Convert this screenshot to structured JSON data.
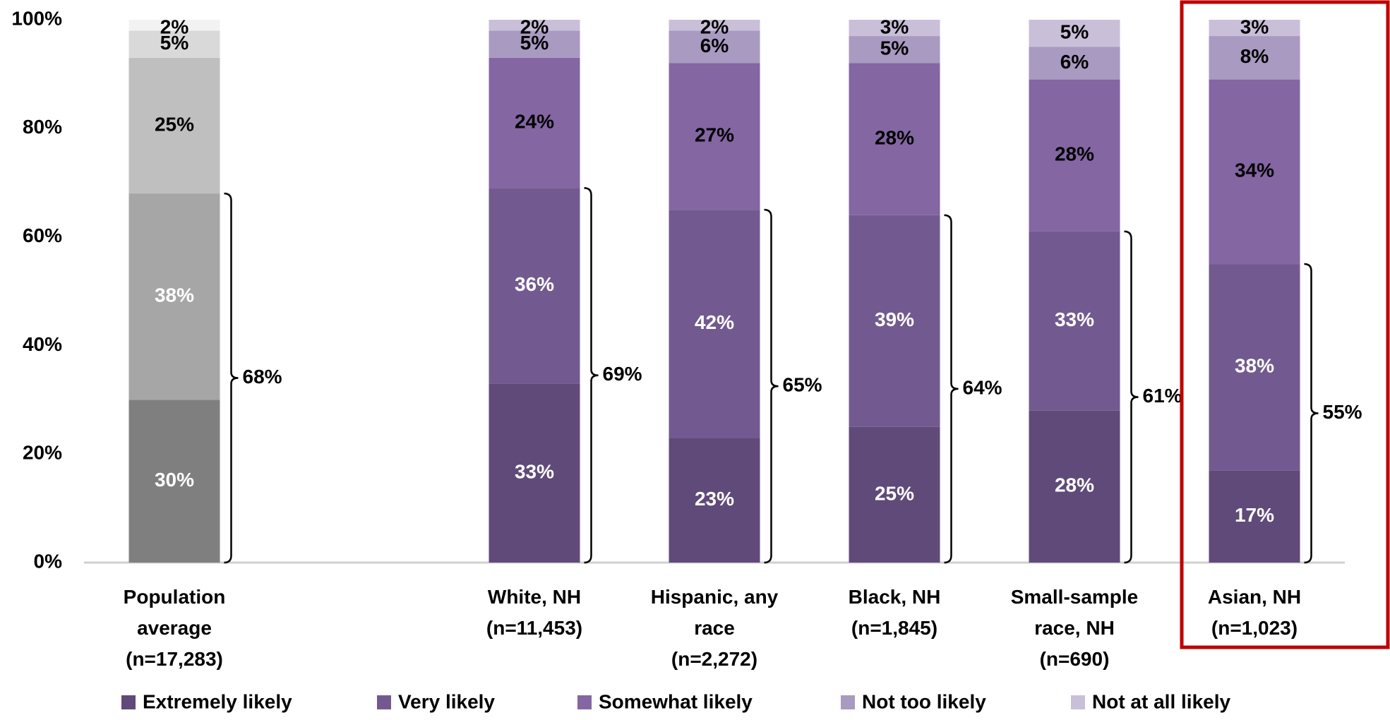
{
  "chart_data": {
    "type": "stacked_bar",
    "categories": [
      "Population average (n=17,283)",
      null,
      "White, NH (n=11,453)",
      "Hispanic, any race (n=2,272)",
      "Black, NH (n=1,845)",
      "Small-sample race, NH (n=690)",
      "Asian, NH (n=1,023)"
    ],
    "series": [
      {
        "name": "Extremely likely",
        "color": "#5f4a7a",
        "colors": [
          "#7f7f7f",
          null,
          "#5f4a7a",
          "#5f4a7a",
          "#5f4a7a",
          "#5f4a7a",
          "#5f4a7a"
        ],
        "values": [
          30,
          null,
          33,
          23,
          25,
          28,
          17
        ],
        "value_labels": [
          "30%",
          null,
          "33%",
          "23%",
          "25%",
          "28%",
          "17%"
        ]
      },
      {
        "name": "Very likely",
        "color": "#725a90",
        "colors": [
          "#a6a6a6",
          null,
          "#725a90",
          "#725a90",
          "#725a90",
          "#725a90",
          "#725a90"
        ],
        "values": [
          38,
          null,
          36,
          42,
          39,
          33,
          38
        ],
        "value_labels": [
          "38%",
          null,
          "36%",
          "42%",
          "39%",
          "33%",
          "38%"
        ]
      },
      {
        "name": "Somewhat likely",
        "color": "#8466a3",
        "colors": [
          "#bfbfbf",
          null,
          "#8466a3",
          "#8466a3",
          "#8466a3",
          "#8466a3",
          "#8466a3"
        ],
        "values": [
          25,
          null,
          24,
          27,
          28,
          28,
          34
        ],
        "value_labels": [
          "25%",
          null,
          "24%",
          "27%",
          "28%",
          "28%",
          "34%"
        ]
      },
      {
        "name": "Not too likely",
        "color": "#a89ac0",
        "colors": [
          "#d9d9d9",
          null,
          "#a89ac0",
          "#a89ac0",
          "#a89ac0",
          "#a89ac0",
          "#a89ac0"
        ],
        "values": [
          5,
          null,
          5,
          6,
          5,
          6,
          8
        ],
        "value_labels": [
          "5%",
          null,
          "5%",
          "6%",
          "5%",
          "6%",
          "8%"
        ]
      },
      {
        "name": "Not at all likely",
        "color": "#c9bfd9",
        "colors": [
          "#f2f2f2",
          null,
          "#c9bfd9",
          "#c9bfd9",
          "#c9bfd9",
          "#c9bfd9",
          "#c9bfd9"
        ],
        "values": [
          2,
          null,
          2,
          2,
          3,
          5,
          3
        ],
        "value_labels": [
          "2%",
          null,
          "2%",
          "2%",
          "3%",
          "5%",
          "3%"
        ]
      }
    ],
    "bracket_values": [
      68,
      null,
      69,
      65,
      64,
      61,
      55
    ],
    "bracket_labels": [
      "68%",
      null,
      "69%",
      "65%",
      "64%",
      "61%",
      "55%"
    ],
    "ylim": [
      0,
      100
    ],
    "yticks": [
      {
        "value": 0,
        "label": "0%"
      },
      {
        "value": 20,
        "label": "20%"
      },
      {
        "value": 40,
        "label": "40%"
      },
      {
        "value": 60,
        "label": "60%"
      },
      {
        "value": 80,
        "label": "80%"
      },
      {
        "value": 100,
        "label": "100%"
      }
    ],
    "legend": "bottom"
  }
}
